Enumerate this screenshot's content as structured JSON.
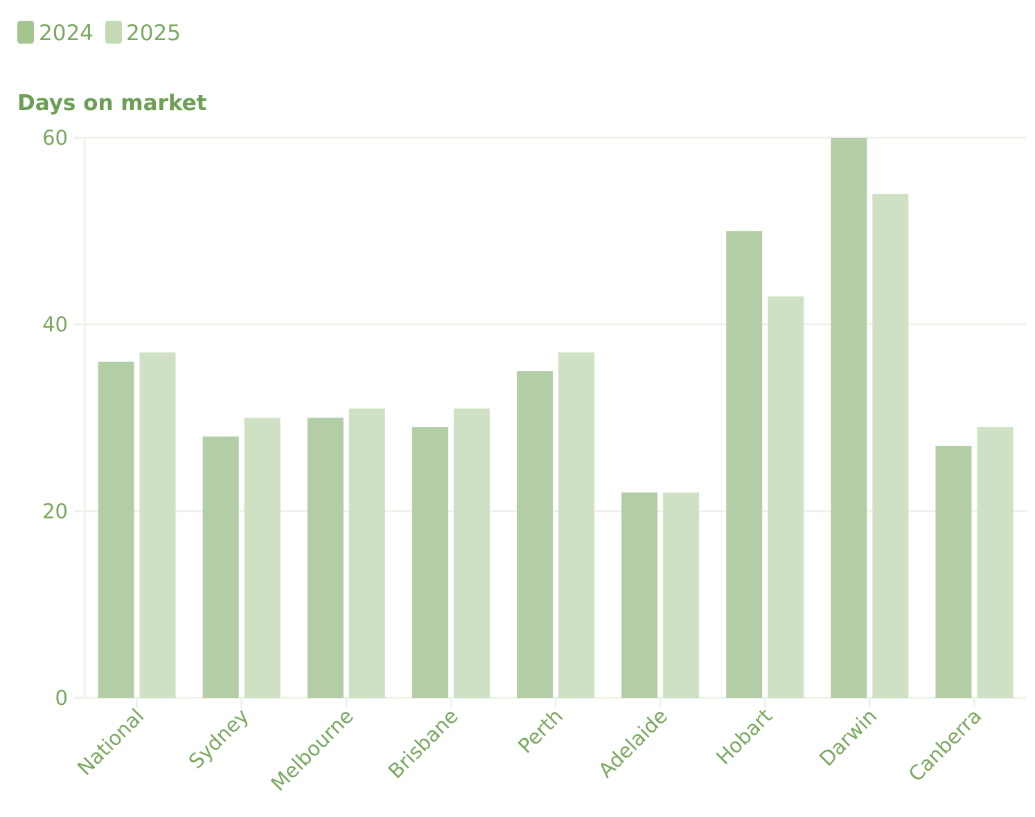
{
  "colors": {
    "series_2024": "#b3cea6",
    "series_2025": "#cfe0c5",
    "legend_2024": "#a3c58f",
    "legend_2025": "#c3dab4",
    "text": "#7aa860",
    "grid": "#eef3ea"
  },
  "chart_data": {
    "type": "bar",
    "ylabel": "Days on market",
    "ylim": [
      0,
      60
    ],
    "yticks": [
      0,
      20,
      40,
      60
    ],
    "grid": true,
    "legend_position": "top-left",
    "categories": [
      "National",
      "Sydney",
      "Melbourne",
      "Brisbane",
      "Perth",
      "Adelaide",
      "Hobart",
      "Darwin",
      "Canberra"
    ],
    "series": [
      {
        "name": "2024",
        "values": [
          36,
          28,
          30,
          29,
          35,
          22,
          50,
          60,
          27
        ]
      },
      {
        "name": "2025",
        "values": [
          37,
          30,
          31,
          31,
          37,
          22,
          43,
          54,
          29
        ]
      }
    ]
  }
}
